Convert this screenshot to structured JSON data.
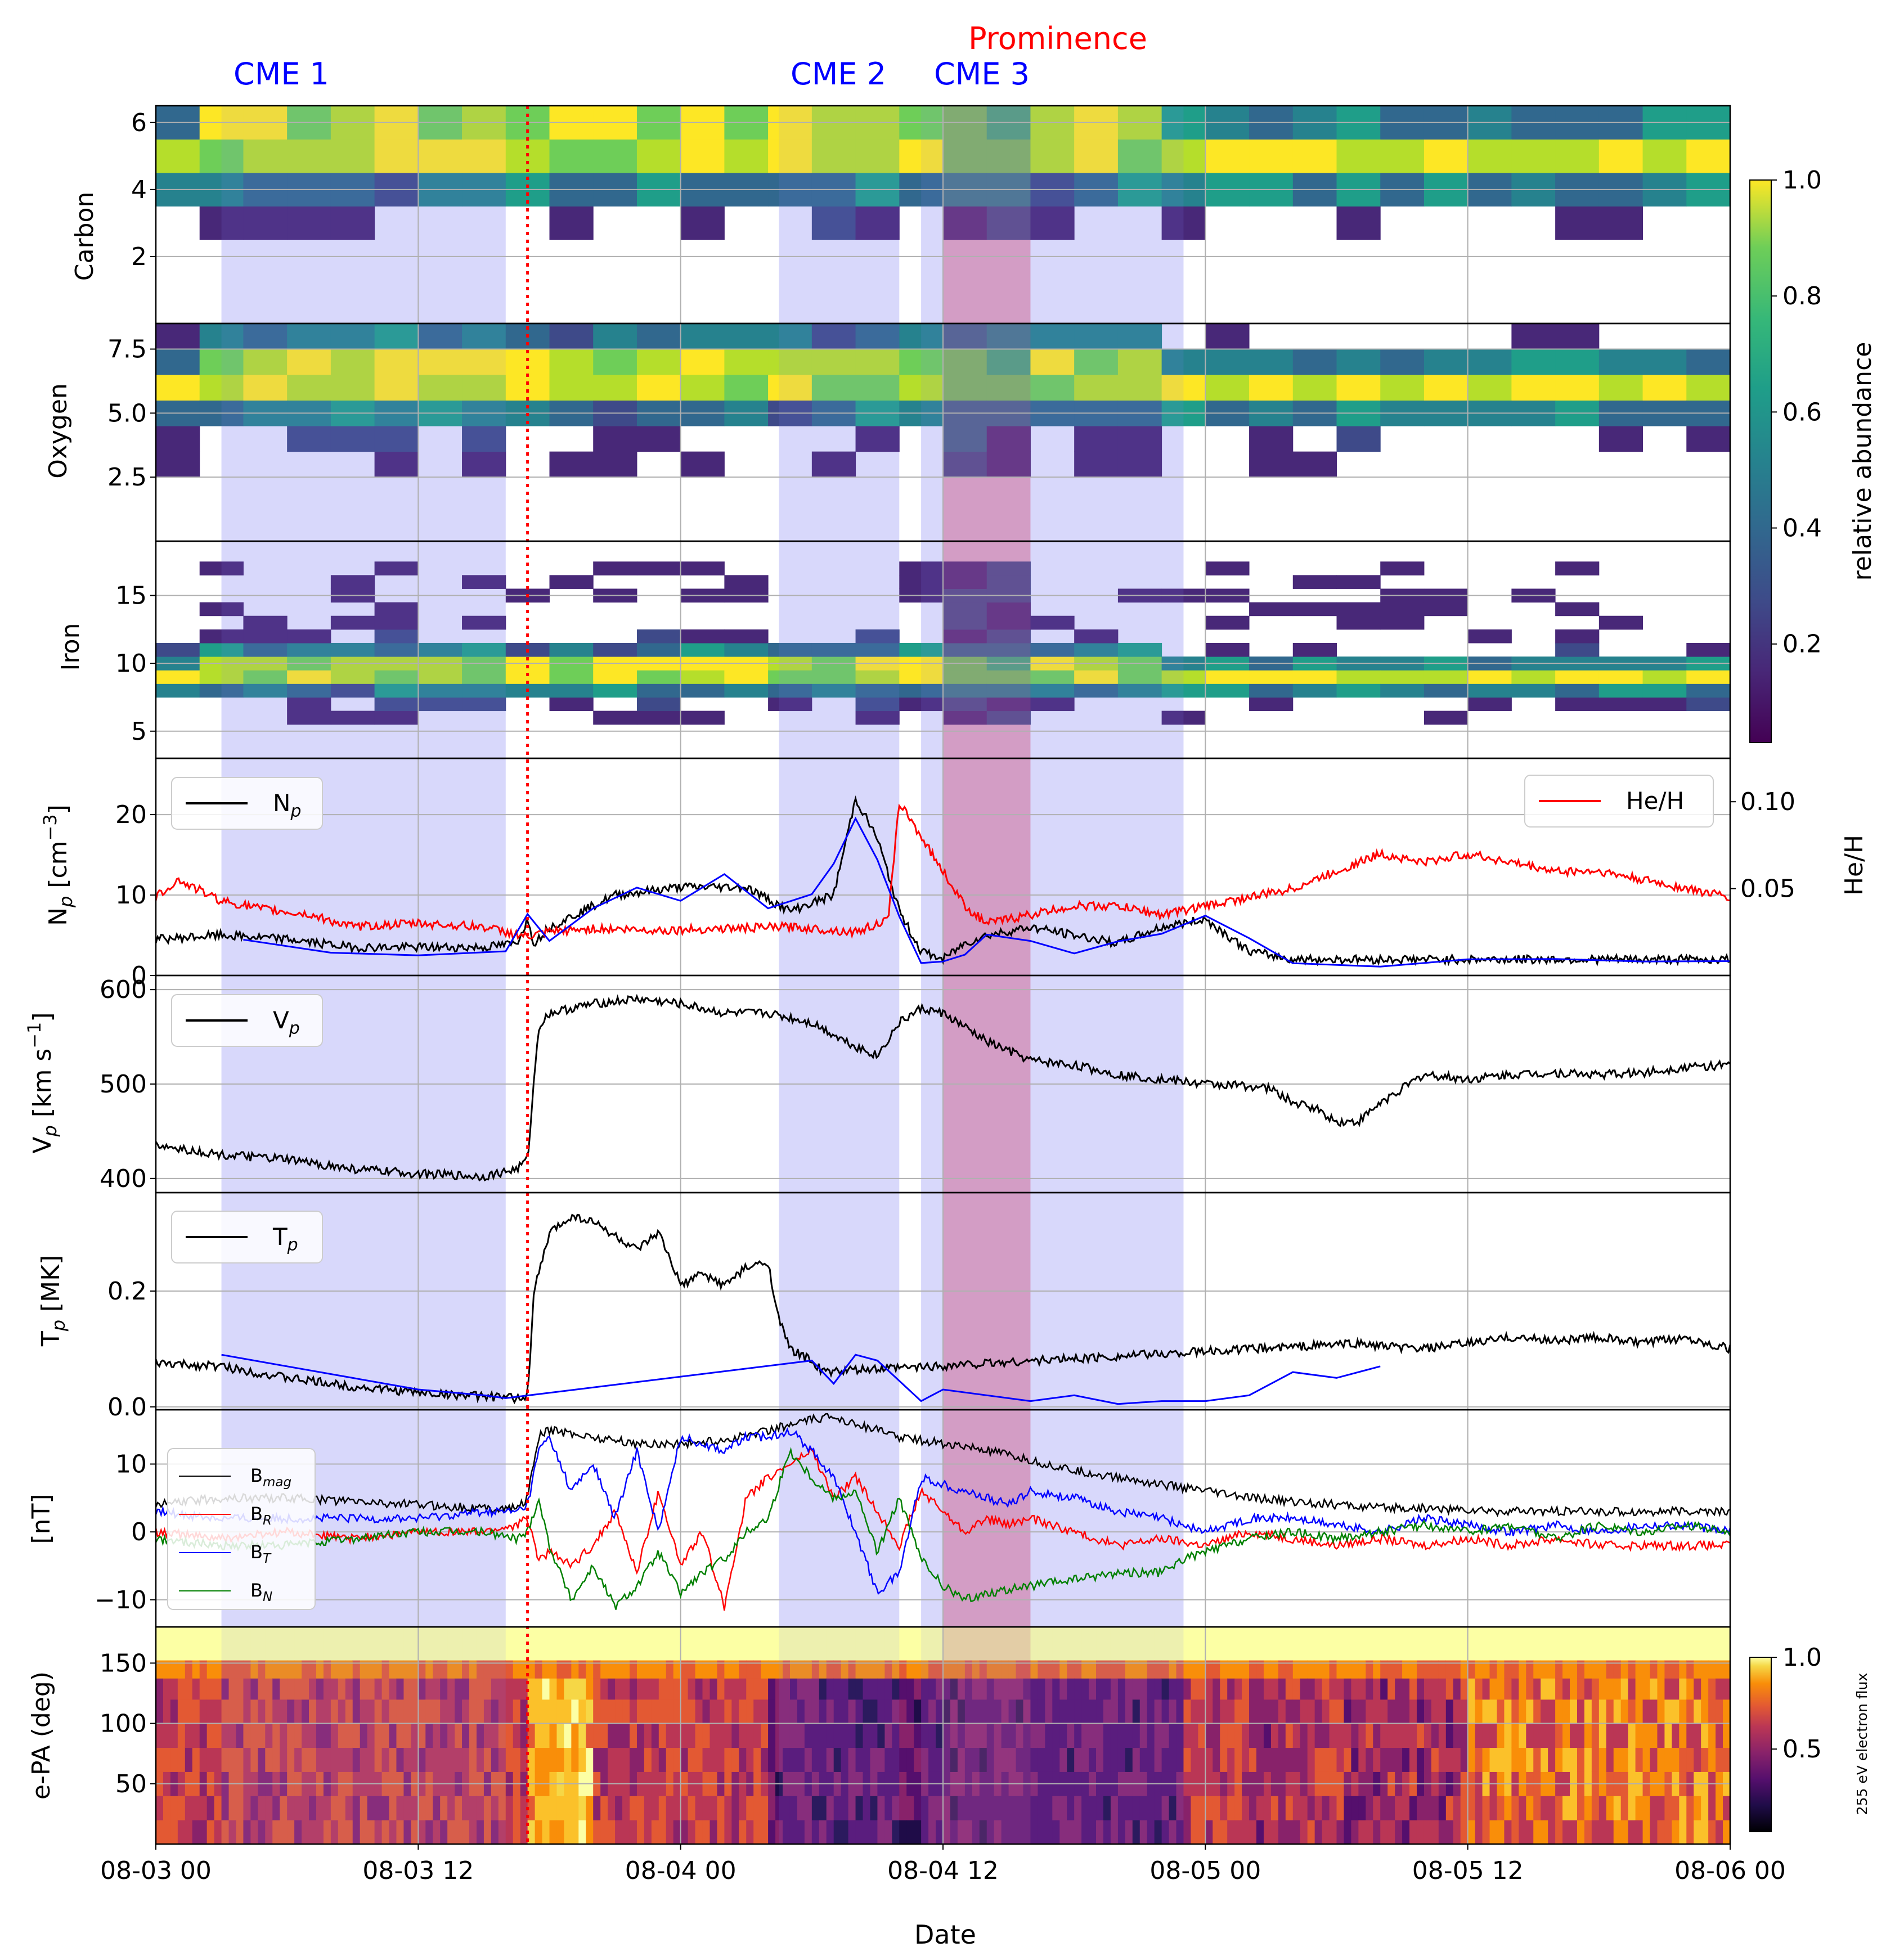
{
  "chart_data": {
    "type": "line",
    "xlabel": "Date",
    "x_range": [
      "08-03 00",
      "08-06 00"
    ],
    "x_ticks": [
      "08-03 00",
      "08-03 12",
      "08-04 00",
      "08-04 12",
      "08-05 00",
      "08-05 12",
      "08-06 00"
    ],
    "shock_time_hours": 17.0,
    "cme_intervals": [
      {
        "name": "CME 1",
        "start_h": 3.0,
        "end_h": 16.0
      },
      {
        "name": "CME 2",
        "start_h": 28.5,
        "end_h": 34.0
      },
      {
        "name": "CME 3",
        "start_h": 35.0,
        "end_h": 47.0
      }
    ],
    "prominence": {
      "name": "Prominence",
      "start_h": 36.0,
      "end_h": 40.0
    },
    "colors": {
      "cme_fill": "#e4e4fb",
      "prominence_fill": "#e5b6cf",
      "shock_line": "#ff0000",
      "cme_label": "#0000ff",
      "prominence_label": "#ff0000"
    },
    "panels": [
      {
        "id": "carbon",
        "ylabel": "Carbon",
        "ylim": [
          0,
          6.5
        ],
        "yticks": [
          "2",
          "4",
          "6"
        ],
        "type": "heatmap",
        "colormap": "viridis"
      },
      {
        "id": "oxygen",
        "ylabel": "Oxygen",
        "ylim": [
          0,
          8.5
        ],
        "yticks": [
          "2.5",
          "5.0",
          "7.5"
        ],
        "type": "heatmap",
        "colormap": "viridis"
      },
      {
        "id": "iron",
        "ylabel": "Iron",
        "ylim": [
          3,
          19
        ],
        "yticks": [
          "5",
          "10",
          "15"
        ],
        "type": "heatmap",
        "colormap": "viridis"
      },
      {
        "id": "density",
        "ylabel": "N_p [cm^-3]",
        "ylim": [
          0,
          27
        ],
        "yticks": [
          "0",
          "10",
          "20"
        ],
        "right_ylabel": "He/H",
        "right_ylim": [
          0,
          0.125
        ],
        "right_yticks": [
          "0.05",
          "0.10"
        ],
        "legend_left": [
          "N_p"
        ],
        "legend_right": [
          "He/H"
        ]
      },
      {
        "id": "velocity",
        "ylabel": "V_p [km s^-1]",
        "ylim": [
          385,
          615
        ],
        "yticks": [
          "400",
          "500",
          "600"
        ],
        "legend_left": [
          "V_p"
        ]
      },
      {
        "id": "temperature",
        "ylabel": "T_p [MK]",
        "ylim": [
          -0.005,
          0.37
        ],
        "yticks": [
          "0.0",
          "0.2"
        ],
        "legend_left": [
          "T_p"
        ]
      },
      {
        "id": "field",
        "ylabel": "[nT]",
        "ylim": [
          -14,
          18
        ],
        "yticks": [
          "−10",
          "0",
          "10"
        ],
        "legend_left": [
          "B_mag",
          "B_R",
          "B_T",
          "B_N"
        ]
      },
      {
        "id": "epa",
        "ylabel": "e-PA (deg)",
        "ylim": [
          0,
          180
        ],
        "yticks": [
          "50",
          "100",
          "150"
        ],
        "type": "heatmap",
        "colormap": "inferno"
      }
    ],
    "colorbars": [
      {
        "label": "relative abundance",
        "range": [
          0.03,
          1.0
        ],
        "ticks": [
          "0.2",
          "0.4",
          "0.6",
          "0.8",
          "1.0"
        ],
        "colormap": "viridis"
      },
      {
        "label": "255 eV electron flux",
        "range": [
          0.05,
          1.0
        ],
        "ticks": [
          "0.5",
          "1.0"
        ],
        "colormap": "inferno"
      }
    ],
    "series": [
      {
        "name": "N_p",
        "panel": "density",
        "color": "#000000",
        "x": [
          0,
          3,
          6,
          9,
          12,
          15,
          16.5,
          17,
          17.3,
          18,
          21,
          24,
          27,
          29,
          30,
          31,
          32,
          33,
          34,
          35,
          36,
          37,
          38,
          40,
          42,
          44,
          46,
          48,
          50,
          52,
          55,
          58,
          61,
          64,
          67,
          70,
          72
        ],
        "y": [
          4.5,
          5.0,
          4.5,
          3.5,
          3.5,
          3.5,
          4.0,
          7.0,
          4.0,
          6.0,
          10.0,
          11.0,
          11.0,
          8.0,
          9.0,
          10.0,
          22.0,
          17.0,
          8.0,
          3.0,
          2.0,
          4.0,
          5.0,
          6.0,
          5.0,
          4.0,
          6.0,
          7.0,
          3.0,
          2.0,
          2.0,
          2.0,
          2.0,
          2.0,
          2.0,
          2.0,
          2.0
        ]
      },
      {
        "name": "He/H",
        "panel": "density",
        "axis": "right",
        "color": "#ff0000",
        "x": [
          0,
          1,
          3,
          5,
          7,
          9,
          12,
          15,
          17,
          18,
          20,
          23,
          26,
          29,
          32,
          33.5,
          34,
          35,
          36,
          37,
          38,
          40,
          42,
          44,
          46,
          48,
          50,
          52,
          54,
          56,
          58,
          60,
          62,
          64,
          66,
          68,
          70,
          72
        ],
        "y": [
          0.045,
          0.055,
          0.043,
          0.038,
          0.035,
          0.028,
          0.03,
          0.028,
          0.022,
          0.025,
          0.027,
          0.026,
          0.027,
          0.028,
          0.025,
          0.032,
          0.1,
          0.08,
          0.06,
          0.04,
          0.03,
          0.035,
          0.04,
          0.04,
          0.035,
          0.04,
          0.045,
          0.05,
          0.06,
          0.07,
          0.065,
          0.07,
          0.065,
          0.06,
          0.06,
          0.055,
          0.05,
          0.045
        ]
      },
      {
        "name": "V_p",
        "panel": "velocity",
        "color": "#000000",
        "x": [
          0,
          3,
          6,
          9,
          12,
          15,
          16.5,
          17,
          17.5,
          18,
          20,
          22,
          24,
          26,
          28,
          30,
          32,
          33,
          34,
          35,
          36,
          38,
          40,
          42,
          44,
          46,
          48,
          50,
          51,
          52,
          53,
          54,
          55,
          56,
          57,
          58,
          60,
          62,
          64,
          66,
          68,
          70,
          72
        ],
        "y": [
          435,
          425,
          420,
          410,
          405,
          402,
          410,
          420,
          560,
          575,
          585,
          590,
          585,
          575,
          575,
          565,
          540,
          530,
          565,
          580,
          575,
          545,
          525,
          520,
          510,
          505,
          500,
          498,
          495,
          480,
          475,
          460,
          460,
          480,
          495,
          510,
          505,
          510,
          512,
          510,
          512,
          518,
          520
        ]
      },
      {
        "name": "T_p",
        "panel": "temperature",
        "color": "#000000",
        "x": [
          0,
          3,
          6,
          9,
          12,
          15,
          16.5,
          17,
          17.3,
          18,
          19,
          20,
          22,
          23,
          24,
          25,
          26,
          27,
          28,
          28.5,
          29,
          30,
          30.5,
          55,
          56,
          58,
          60,
          62,
          64,
          66,
          68,
          70,
          72
        ],
        "y": [
          0.075,
          0.07,
          0.05,
          0.035,
          0.025,
          0.018,
          0.015,
          0.018,
          0.2,
          0.3,
          0.33,
          0.32,
          0.27,
          0.3,
          0.21,
          0.23,
          0.21,
          0.24,
          0.25,
          0.15,
          0.1,
          0.08,
          0.06,
          0.11,
          0.105,
          0.1,
          0.11,
          0.12,
          0.115,
          0.12,
          0.11,
          0.12,
          0.1
        ]
      },
      {
        "name": "B_mag",
        "panel": "field",
        "color": "#000000",
        "x": [
          0,
          3,
          6,
          9,
          12,
          15,
          16.5,
          17,
          17.5,
          18,
          20,
          22,
          24,
          26,
          28,
          30,
          31,
          32,
          34,
          36,
          38,
          40,
          42,
          44,
          46,
          47,
          48,
          50,
          52,
          54,
          56,
          58,
          60,
          62,
          64,
          66,
          68,
          70,
          72
        ],
        "y": [
          4,
          5,
          5,
          4.5,
          4,
          3.5,
          3.5,
          5,
          14,
          15,
          14,
          13,
          13,
          13.5,
          15,
          16.5,
          17,
          16,
          14,
          13,
          12,
          10.5,
          9,
          8,
          7,
          6.5,
          6,
          5,
          4.5,
          4,
          3.5,
          3.5,
          3.2,
          3,
          3,
          3,
          3,
          3,
          3
        ]
      },
      {
        "name": "B_R",
        "panel": "field",
        "color": "#ff0000",
        "x": [
          0,
          3,
          6,
          9,
          12,
          15,
          16.5,
          17,
          17.5,
          18,
          19,
          20,
          21,
          22,
          23,
          24,
          25,
          26,
          27,
          28,
          29,
          30,
          31,
          32,
          33,
          34,
          35,
          36,
          37,
          38,
          39,
          40,
          42,
          44,
          46,
          48,
          50,
          52,
          54,
          56,
          58,
          60,
          62,
          64,
          66,
          68,
          70,
          72
        ],
        "y": [
          0,
          -1,
          0,
          -1,
          0,
          0,
          1,
          2,
          -4,
          -3,
          -5,
          -2,
          3,
          -6,
          6,
          -5,
          0,
          -11,
          5,
          8,
          10,
          12,
          5,
          8,
          3,
          -2,
          6,
          3,
          0,
          2,
          1,
          2,
          0,
          -2,
          -1,
          -2,
          0,
          -1,
          -2,
          -1,
          -2,
          -1,
          -2,
          -1,
          -2,
          -2,
          -2,
          -2
        ]
      },
      {
        "name": "B_T",
        "panel": "field",
        "color": "#0000ff",
        "x": [
          0,
          3,
          6,
          9,
          12,
          15,
          16.5,
          17,
          17.5,
          18,
          19,
          20,
          21,
          22,
          23,
          24,
          25,
          26,
          27,
          28,
          29,
          30,
          31,
          32,
          33,
          34,
          35,
          36,
          37,
          38,
          39,
          40,
          42,
          44,
          46,
          47,
          48,
          50,
          52,
          54,
          56,
          58,
          60,
          62,
          64,
          66,
          68,
          70,
          72
        ],
        "y": [
          3,
          2,
          2,
          2,
          2,
          3,
          3,
          4,
          12,
          14,
          6,
          10,
          2,
          12,
          0,
          14,
          13,
          12,
          14,
          14,
          15,
          12,
          8,
          0,
          -9,
          -6,
          8,
          7,
          6,
          5,
          4,
          6,
          5,
          3,
          2,
          1,
          0,
          2,
          2,
          1,
          0,
          2,
          1,
          0,
          1,
          0,
          1,
          1,
          0
        ]
      },
      {
        "name": "B_N",
        "panel": "field",
        "color": "#008000",
        "x": [
          0,
          3,
          6,
          9,
          12,
          15,
          16.5,
          17,
          17.5,
          18,
          19,
          20,
          21,
          22,
          23,
          24,
          25,
          26,
          27,
          28,
          29,
          30,
          31,
          32,
          33,
          34,
          35,
          36,
          37,
          38,
          40,
          42,
          44,
          46,
          47,
          48,
          50,
          52,
          54,
          56,
          58,
          60,
          62,
          64,
          66,
          68,
          70,
          72
        ],
        "y": [
          -1,
          -2,
          -2,
          -1,
          0,
          0,
          -1,
          0,
          5,
          -2,
          -10,
          -5,
          -11,
          -8,
          -3,
          -9,
          -6,
          -4,
          0,
          2,
          12,
          8,
          5,
          6,
          -3,
          5,
          -4,
          -8,
          -10,
          -9,
          -8,
          -7,
          -6,
          -6,
          -4,
          -3,
          -1,
          0,
          -1,
          0,
          1,
          0,
          1,
          -1,
          1,
          0,
          1,
          0
        ]
      }
    ]
  },
  "labels": {
    "cme1": "CME 1",
    "cme2": "CME 2",
    "cme3": "CME 3",
    "prominence": "Prominence",
    "date": "Date",
    "carbon": "Carbon",
    "oxygen": "Oxygen",
    "iron": "Iron",
    "epa": "e-PA (deg)",
    "nT": "[nT]",
    "he_h_axis": "He/H",
    "cb1": "relative abundance",
    "cb2": "255 eV electron flux",
    "np_base": "N",
    "np_sub": "p",
    "np_unit": " [cm",
    "np_sup": "−3",
    "np_close": "]",
    "vp_base": "V",
    "vp_sub": "p",
    "vp_unit": " [km s",
    "vp_sup": "−1",
    "vp_close": "]",
    "tp_base": "T",
    "tp_sub": "p",
    "tp_unit": " [MK]",
    "leg_np": "N",
    "leg_vp": "V",
    "leg_tp": "T",
    "leg_p": "p",
    "leg_heh": "He/H",
    "leg_b": "B",
    "leg_mag": "mag",
    "leg_r": "R",
    "leg_t": "T",
    "leg_n": "N"
  }
}
